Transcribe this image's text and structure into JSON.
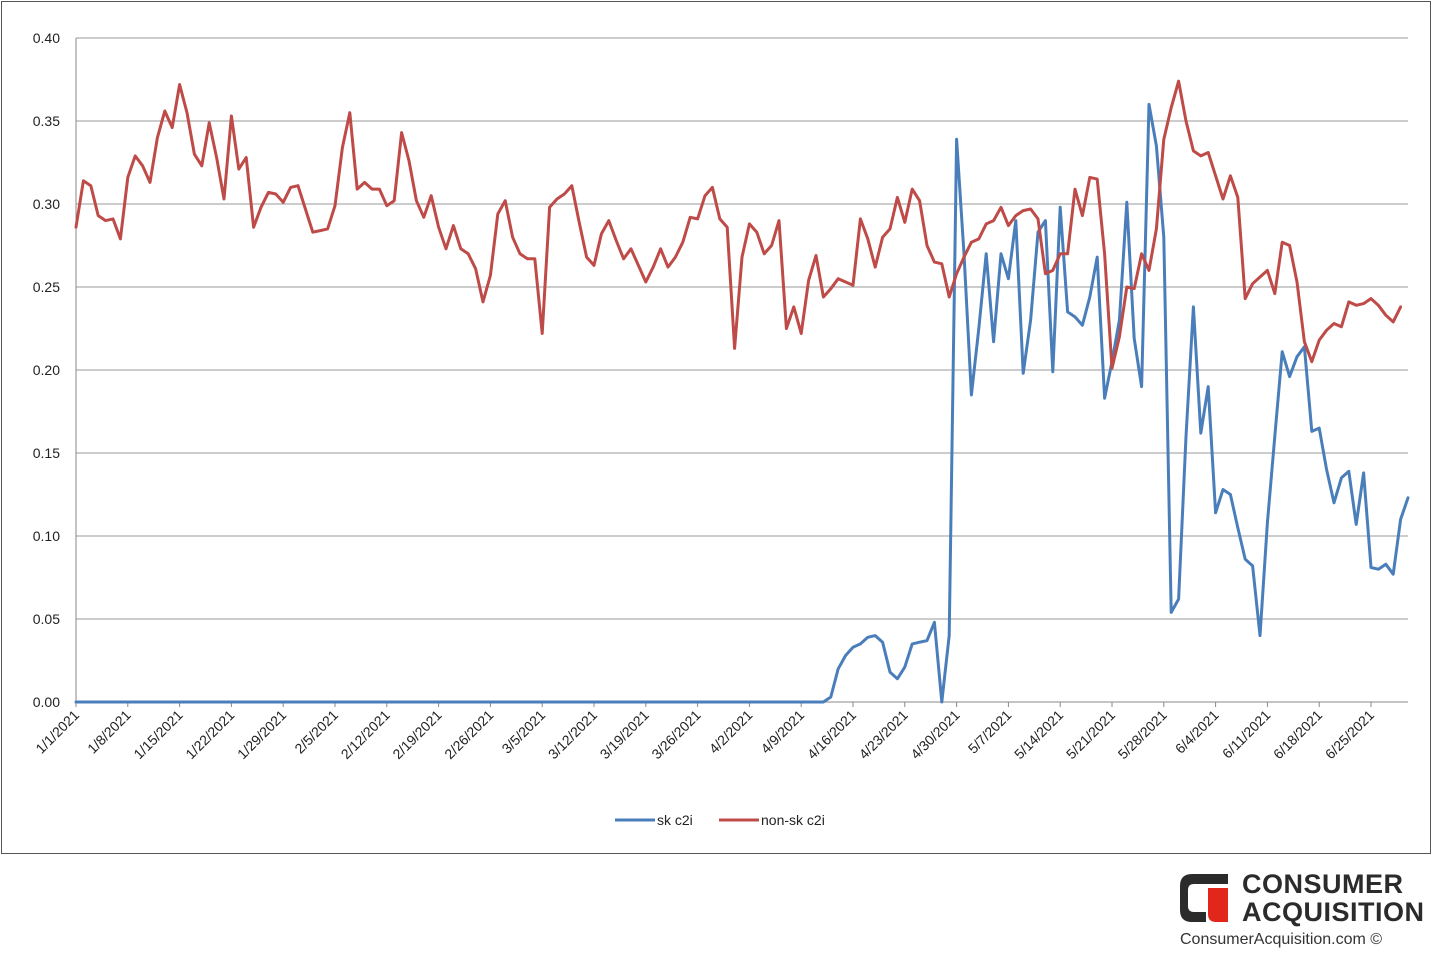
{
  "chart_data": {
    "type": "line",
    "title": "",
    "xlabel": "",
    "ylabel": "",
    "ylim": [
      0,
      0.4
    ],
    "yticks": [
      "0.00",
      "0.05",
      "0.10",
      "0.15",
      "0.20",
      "0.25",
      "0.30",
      "0.35",
      "0.40"
    ],
    "x_start": "1/1/2021",
    "x_end": "6/30/2021",
    "xticks": [
      "1/1/2021",
      "1/8/2021",
      "1/15/2021",
      "1/22/2021",
      "1/29/2021",
      "2/5/2021",
      "2/12/2021",
      "2/19/2021",
      "2/26/2021",
      "3/5/2021",
      "3/12/2021",
      "3/19/2021",
      "3/26/2021",
      "4/2/2021",
      "4/9/2021",
      "4/16/2021",
      "4/23/2021",
      "4/30/2021",
      "5/7/2021",
      "5/14/2021",
      "5/21/2021",
      "5/28/2021",
      "6/4/2021",
      "6/11/2021",
      "6/18/2021",
      "6/25/2021"
    ],
    "grid": true,
    "legend_position": "bottom-center",
    "series": [
      {
        "name": "sk c2i",
        "color": "#4a7ebb",
        "values": [
          0,
          0,
          0,
          0,
          0,
          0,
          0,
          0,
          0,
          0,
          0,
          0,
          0,
          0,
          0,
          0,
          0,
          0,
          0,
          0,
          0,
          0,
          0,
          0,
          0,
          0,
          0,
          0,
          0,
          0,
          0,
          0,
          0,
          0,
          0,
          0,
          0,
          0,
          0,
          0,
          0,
          0,
          0,
          0,
          0,
          0,
          0,
          0,
          0,
          0,
          0,
          0,
          0,
          0,
          0,
          0,
          0,
          0,
          0,
          0,
          0,
          0,
          0,
          0,
          0,
          0,
          0,
          0,
          0,
          0,
          0,
          0,
          0,
          0,
          0,
          0,
          0,
          0,
          0,
          0,
          0,
          0,
          0,
          0,
          0,
          0,
          0,
          0,
          0,
          0,
          0,
          0,
          0,
          0,
          0,
          0,
          0,
          0,
          0,
          0,
          0,
          0,
          0.003,
          0.02,
          0.028,
          0.033,
          0.035,
          0.039,
          0.04,
          0.036,
          0.018,
          0.014,
          0.021,
          0.035,
          0.036,
          0.037,
          0.048,
          0.0,
          0.04,
          0.339,
          0.27,
          0.185,
          0.225,
          0.27,
          0.217,
          0.27,
          0.255,
          0.29,
          0.198,
          0.23,
          0.283,
          0.29,
          0.199,
          0.298,
          0.235,
          0.232,
          0.227,
          0.244,
          0.268,
          0.183,
          0.205,
          0.23,
          0.301,
          0.219,
          0.19,
          0.36,
          0.335,
          0.28,
          0.054,
          0.062,
          0.16,
          0.238,
          0.162,
          0.19,
          0.114,
          0.128,
          0.125,
          0.105,
          0.086,
          0.082,
          0.04,
          0.108,
          0.16,
          0.211,
          0.196,
          0.208,
          0.214,
          0.163,
          0.165,
          0.14,
          0.12,
          0.135,
          0.139,
          0.107,
          0.138,
          0.081,
          0.08,
          0.083,
          0.077,
          0.11,
          0.123
        ]
      },
      {
        "name": "non-sk c2i",
        "color": "#be4b48",
        "values": [
          0.286,
          0.314,
          0.311,
          0.293,
          0.29,
          0.291,
          0.279,
          0.316,
          0.329,
          0.323,
          0.313,
          0.34,
          0.356,
          0.346,
          0.372,
          0.355,
          0.33,
          0.323,
          0.349,
          0.328,
          0.303,
          0.353,
          0.321,
          0.328,
          0.286,
          0.298,
          0.307,
          0.306,
          0.301,
          0.31,
          0.311,
          0.297,
          0.283,
          0.284,
          0.285,
          0.299,
          0.334,
          0.355,
          0.309,
          0.313,
          0.309,
          0.309,
          0.299,
          0.302,
          0.343,
          0.326,
          0.302,
          0.292,
          0.305,
          0.286,
          0.273,
          0.287,
          0.273,
          0.27,
          0.261,
          0.241,
          0.257,
          0.294,
          0.302,
          0.28,
          0.27,
          0.267,
          0.267,
          0.222,
          0.298,
          0.303,
          0.306,
          0.311,
          0.289,
          0.268,
          0.263,
          0.282,
          0.29,
          0.278,
          0.267,
          0.273,
          0.263,
          0.253,
          0.262,
          0.273,
          0.262,
          0.268,
          0.277,
          0.292,
          0.291,
          0.305,
          0.31,
          0.291,
          0.286,
          0.213,
          0.268,
          0.288,
          0.283,
          0.27,
          0.275,
          0.29,
          0.225,
          0.238,
          0.222,
          0.254,
          0.269,
          0.244,
          0.249,
          0.255,
          0.253,
          0.251,
          0.291,
          0.279,
          0.262,
          0.28,
          0.285,
          0.304,
          0.289,
          0.309,
          0.302,
          0.275,
          0.265,
          0.264,
          0.244,
          0.258,
          0.268,
          0.277,
          0.279,
          0.288,
          0.29,
          0.298,
          0.287,
          0.293,
          0.296,
          0.297,
          0.291,
          0.258,
          0.26,
          0.27,
          0.27,
          0.309,
          0.293,
          0.316,
          0.315,
          0.27,
          0.201,
          0.22,
          0.25,
          0.249,
          0.27,
          0.26,
          0.285,
          0.339,
          0.358,
          0.374,
          0.35,
          0.332,
          0.329,
          0.331,
          0.317,
          0.303,
          0.317,
          0.304,
          0.243,
          0.252,
          0.256,
          0.26,
          0.246,
          0.277,
          0.275,
          0.253,
          0.217,
          0.205,
          0.218,
          0.224,
          0.228,
          0.226,
          0.241,
          0.239,
          0.24,
          0.243,
          0.239,
          0.233,
          0.229,
          0.238
        ]
      }
    ]
  },
  "brand": {
    "line1": "CONSUMER",
    "line2": "ACQUISITION",
    "url": "ConsumerAcquisition.com ©",
    "logo_dark": "#2b2b2b",
    "logo_red": "#e1261c"
  }
}
